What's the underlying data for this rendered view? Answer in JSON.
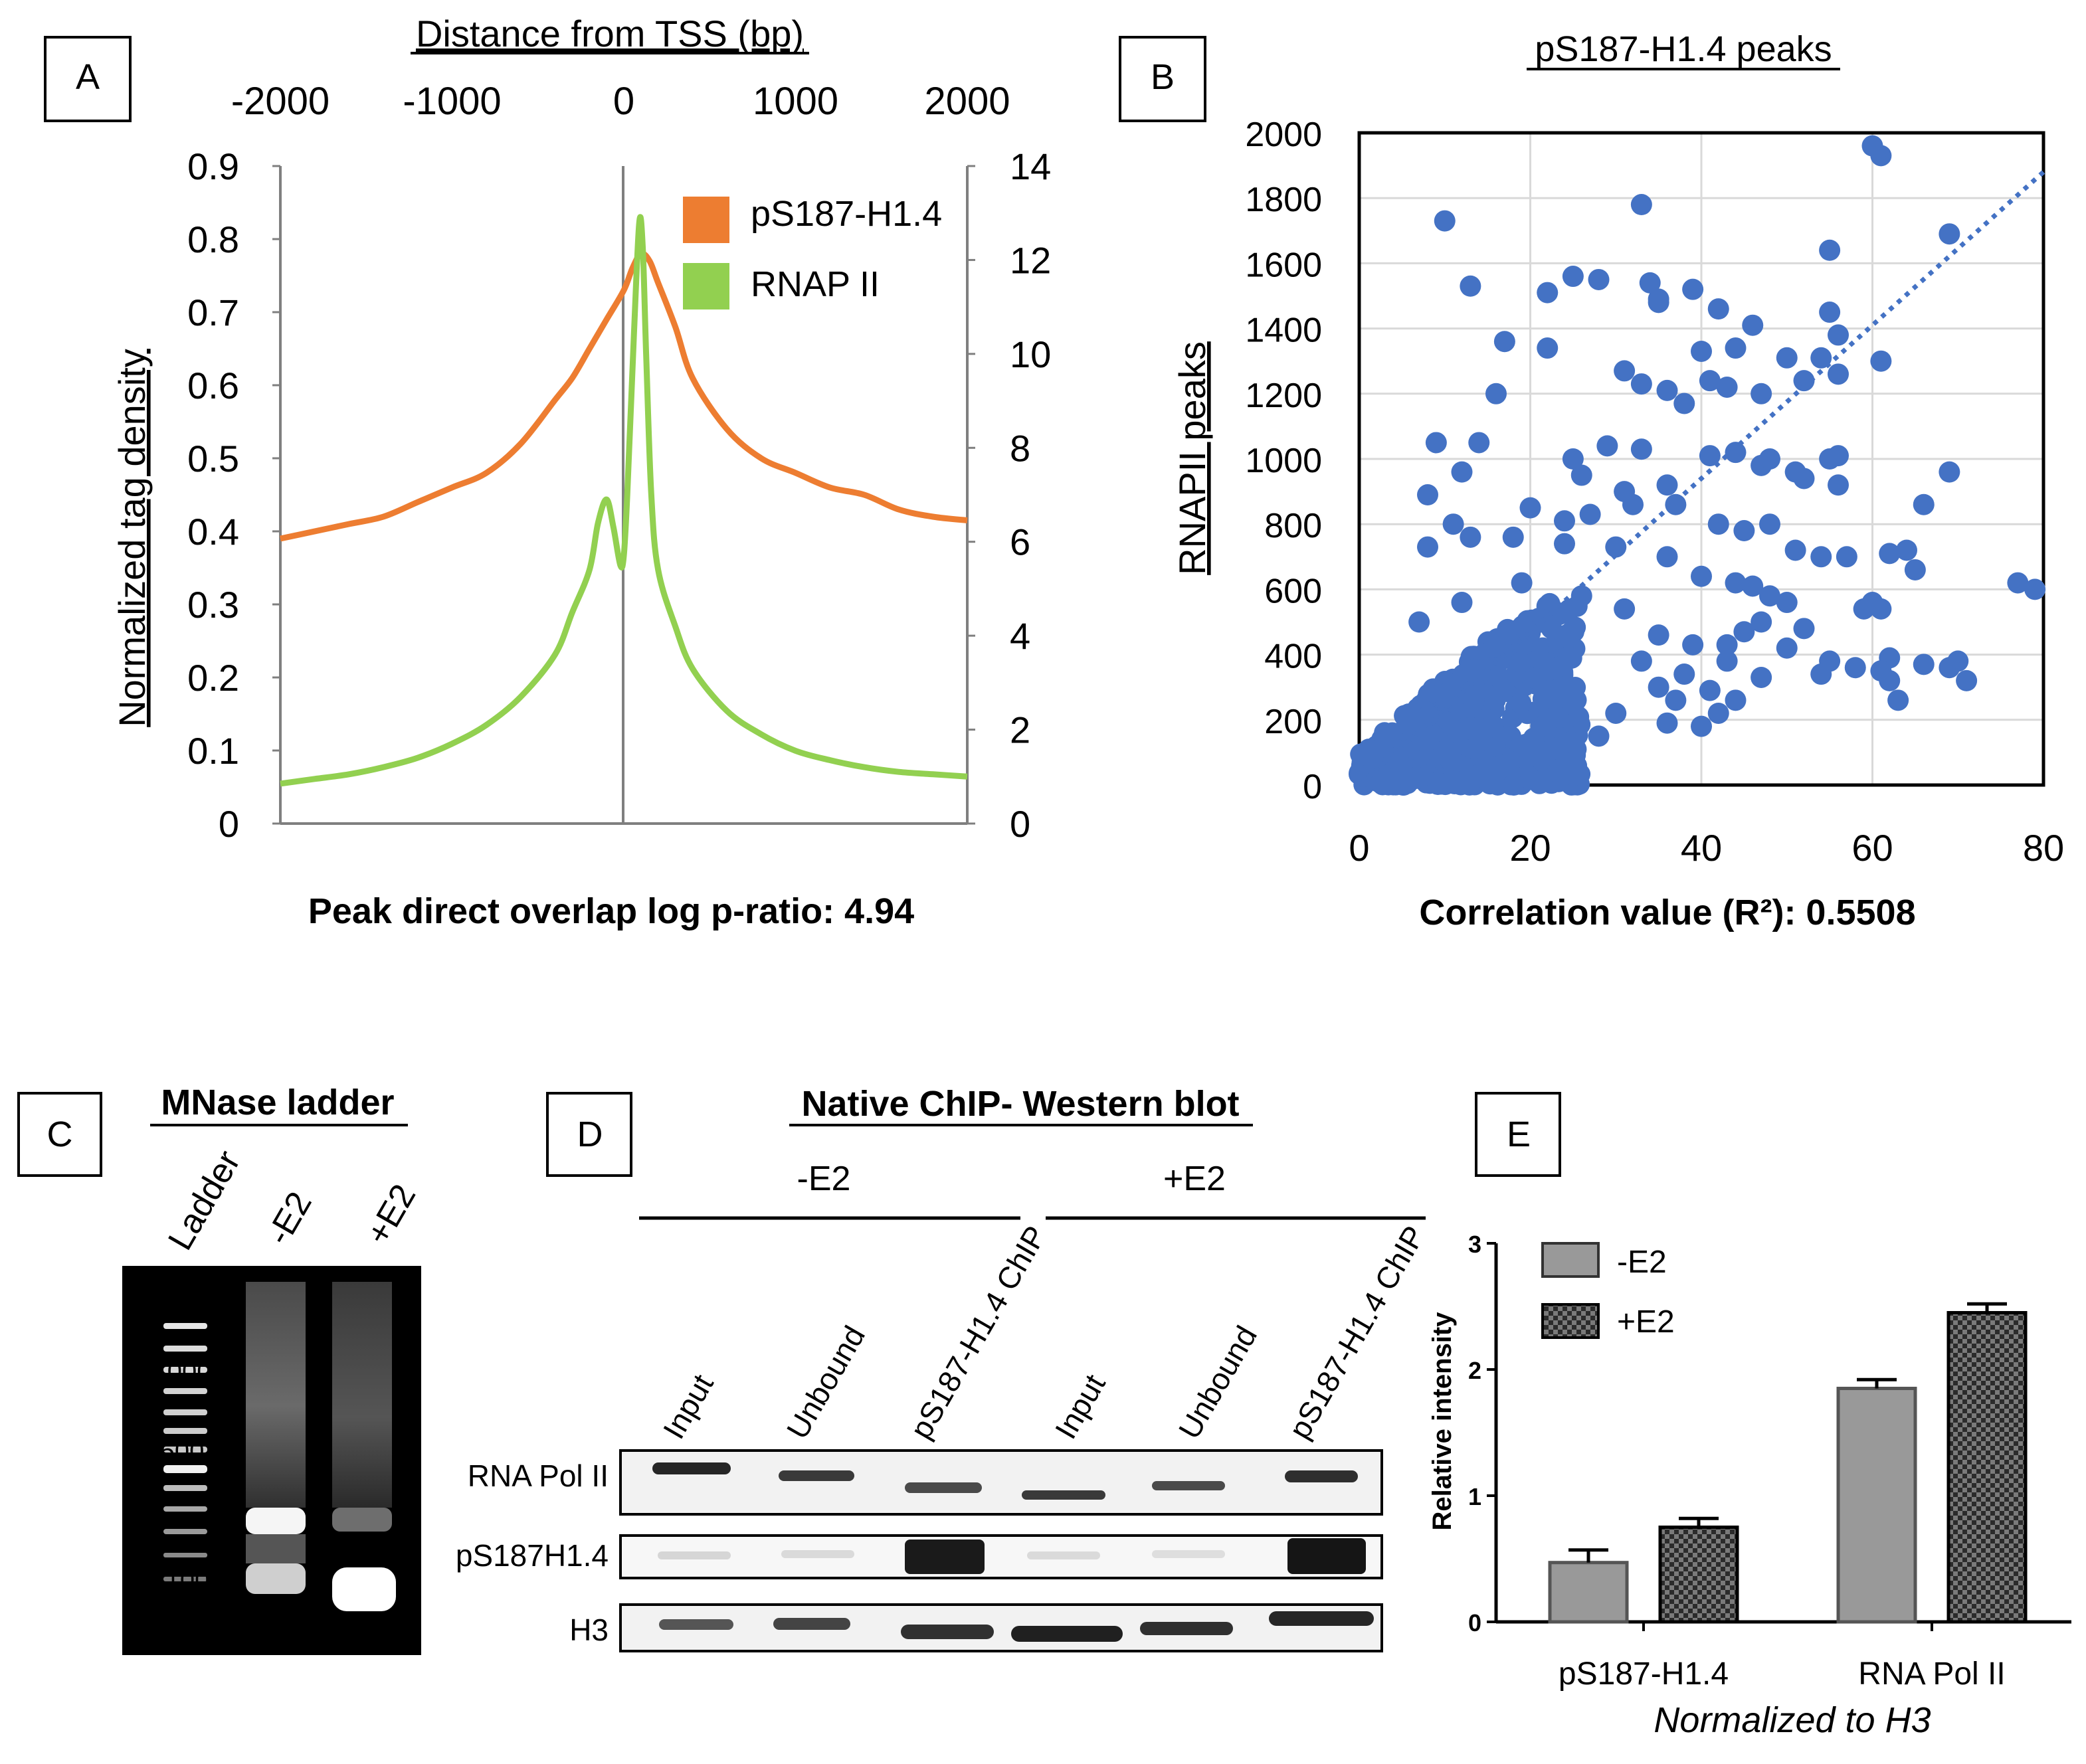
{
  "panels": {
    "a": "A",
    "b": "B",
    "c": "C",
    "d": "D",
    "e": "E"
  },
  "chart_data": [
    {
      "id": "A",
      "type": "line",
      "title": "Distance from TSS (bp)",
      "top_axis_ticks": [
        "-2000",
        "-1000",
        "0",
        "1000",
        "2000"
      ],
      "xlim": [
        -2000,
        2000
      ],
      "ylabel": "Normalized tag density",
      "left_ticks": [
        "0.9",
        "0.8",
        "0.7",
        "0.6",
        "0.5",
        "0.4",
        "0.3",
        "0.2",
        "0.1",
        "0"
      ],
      "ylim_left": [
        0,
        0.9
      ],
      "right_ticks": [
        "14",
        "12",
        "10",
        "8",
        "6",
        "4",
        "2",
        "0"
      ],
      "ylim_right": [
        0,
        14
      ],
      "footer": "Peak direct overlap log p-ratio: 4.94",
      "series": [
        {
          "name": "pS187-H1.4",
          "axis": "left",
          "color": "#ED7D31",
          "x": [
            -2000,
            -1800,
            -1600,
            -1400,
            -1200,
            -1000,
            -800,
            -600,
            -400,
            -300,
            -200,
            -100,
            0,
            50,
            100,
            150,
            200,
            300,
            400,
            600,
            800,
            1000,
            1200,
            1400,
            1600,
            1800,
            2000
          ],
          "values": [
            0.39,
            0.4,
            0.41,
            0.42,
            0.44,
            0.46,
            0.48,
            0.52,
            0.58,
            0.61,
            0.65,
            0.69,
            0.73,
            0.76,
            0.78,
            0.77,
            0.74,
            0.68,
            0.61,
            0.54,
            0.5,
            0.48,
            0.46,
            0.45,
            0.43,
            0.42,
            0.415
          ]
        },
        {
          "name": "RNAP II",
          "axis": "right",
          "color": "#92D050",
          "x": [
            -2000,
            -1800,
            -1600,
            -1400,
            -1200,
            -1000,
            -800,
            -600,
            -400,
            -300,
            -200,
            -150,
            -100,
            -60,
            -20,
            0,
            20,
            60,
            90,
            110,
            130,
            160,
            200,
            300,
            400,
            600,
            800,
            1000,
            1200,
            1400,
            1600,
            1800,
            2000
          ],
          "values": [
            0.85,
            0.95,
            1.05,
            1.2,
            1.4,
            1.7,
            2.1,
            2.7,
            3.6,
            4.5,
            5.4,
            6.4,
            6.9,
            6.3,
            5.5,
            5.7,
            7.0,
            10.5,
            12.8,
            12.3,
            10.0,
            7.0,
            5.4,
            4.2,
            3.3,
            2.4,
            1.9,
            1.55,
            1.35,
            1.2,
            1.1,
            1.05,
            1.0
          ]
        }
      ]
    },
    {
      "id": "B",
      "type": "scatter",
      "title": "pS187-H1.4 peaks",
      "xlabel": "Correlation value (R²): 0.5508",
      "ylabel": "RNAPII peaks",
      "xlim": [
        0,
        80
      ],
      "ylim": [
        0,
        2000
      ],
      "x_ticks": [
        "0",
        "20",
        "40",
        "60",
        "80"
      ],
      "y_ticks": [
        "2000",
        "1800",
        "1600",
        "1400",
        "1200",
        "1000",
        "800",
        "600",
        "400",
        "200",
        "0"
      ],
      "trendline": {
        "style": "dotted",
        "from": [
          0,
          0
        ],
        "to": [
          80,
          1880
        ]
      },
      "point_color": "#4472C4",
      "points": [
        [
          60,
          1960
        ],
        [
          61,
          1930
        ],
        [
          33,
          1780
        ],
        [
          10,
          1730
        ],
        [
          69,
          1690
        ],
        [
          55,
          1640
        ],
        [
          13,
          1530
        ],
        [
          28,
          1550
        ],
        [
          34,
          1540
        ],
        [
          22,
          1510
        ],
        [
          25,
          1560
        ],
        [
          35,
          1490
        ],
        [
          39,
          1520
        ],
        [
          42,
          1460
        ],
        [
          55,
          1450
        ],
        [
          56,
          1380
        ],
        [
          17,
          1360
        ],
        [
          22,
          1340
        ],
        [
          35,
          1480
        ],
        [
          46,
          1410
        ],
        [
          50,
          1310
        ],
        [
          54,
          1310
        ],
        [
          61,
          1300
        ],
        [
          31,
          1270
        ],
        [
          33,
          1230
        ],
        [
          36,
          1210
        ],
        [
          40,
          1330
        ],
        [
          41,
          1240
        ],
        [
          43,
          1220
        ],
        [
          44,
          1340
        ],
        [
          47,
          1200
        ],
        [
          52,
          1240
        ],
        [
          56,
          1260
        ],
        [
          38,
          1170
        ],
        [
          16,
          1200
        ],
        [
          9,
          1050
        ],
        [
          14,
          1050
        ],
        [
          25,
          1000
        ],
        [
          29,
          1040
        ],
        [
          33,
          1030
        ],
        [
          41,
          1010
        ],
        [
          47,
          980
        ],
        [
          51,
          960
        ],
        [
          55,
          1000
        ],
        [
          56,
          920
        ],
        [
          69,
          960
        ],
        [
          12,
          960
        ],
        [
          26,
          950
        ],
        [
          31,
          900
        ],
        [
          36,
          920
        ],
        [
          44,
          1020
        ],
        [
          48,
          1000
        ],
        [
          52,
          940
        ],
        [
          56,
          1010
        ],
        [
          8,
          890
        ],
        [
          11,
          800
        ],
        [
          20,
          850
        ],
        [
          24,
          810
        ],
        [
          27,
          830
        ],
        [
          32,
          860
        ],
        [
          37,
          860
        ],
        [
          42,
          800
        ],
        [
          45,
          780
        ],
        [
          48,
          800
        ],
        [
          51,
          720
        ],
        [
          57,
          700
        ],
        [
          62,
          710
        ],
        [
          66,
          860
        ],
        [
          8,
          730
        ],
        [
          13,
          760
        ],
        [
          18,
          760
        ],
        [
          24,
          740
        ],
        [
          30,
          730
        ],
        [
          36,
          700
        ],
        [
          40,
          640
        ],
        [
          44,
          620
        ],
        [
          46,
          610
        ],
        [
          48,
          580
        ],
        [
          50,
          560
        ],
        [
          54,
          700
        ],
        [
          59,
          540
        ],
        [
          61,
          540
        ],
        [
          64,
          720
        ],
        [
          7,
          500
        ],
        [
          12,
          560
        ],
        [
          19,
          620
        ],
        [
          26,
          580
        ],
        [
          31,
          540
        ],
        [
          35,
          460
        ],
        [
          39,
          430
        ],
        [
          43,
          430
        ],
        [
          45,
          470
        ],
        [
          47,
          500
        ],
        [
          52,
          480
        ],
        [
          55,
          380
        ],
        [
          58,
          360
        ],
        [
          60,
          560
        ],
        [
          62,
          390
        ],
        [
          65,
          660
        ],
        [
          33,
          380
        ],
        [
          37,
          260
        ],
        [
          43,
          380
        ],
        [
          47,
          330
        ],
        [
          50,
          420
        ],
        [
          54,
          340
        ],
        [
          61,
          350
        ],
        [
          62,
          320
        ],
        [
          63,
          260
        ],
        [
          66,
          370
        ],
        [
          69,
          360
        ],
        [
          70,
          380
        ],
        [
          71,
          320
        ],
        [
          77,
          620
        ],
        [
          79,
          600
        ],
        [
          40,
          180
        ],
        [
          42,
          220
        ],
        [
          36,
          190
        ],
        [
          30,
          220
        ],
        [
          28,
          150
        ],
        [
          35,
          300
        ],
        [
          38,
          340
        ],
        [
          41,
          290
        ],
        [
          44,
          260
        ]
      ],
      "dense_cluster": {
        "x": [
          0,
          26
        ],
        "y": [
          0,
          560
        ]
      }
    },
    {
      "id": "C",
      "type": "gel",
      "title": "MNase ladder",
      "lanes": [
        "Ladder",
        "-E2",
        "+E2"
      ],
      "size_markers": [
        "1000",
        "500",
        "100"
      ]
    },
    {
      "id": "D",
      "type": "western-blot",
      "title": "Native ChIP- Western blot",
      "groups": [
        "-E2",
        "+E2"
      ],
      "lanes": [
        "Input",
        "Unbound",
        "pS187-H1.4 ChIP",
        "Input",
        "Unbound",
        "pS187-H1.4 ChIP"
      ],
      "rows": [
        "RNA Pol II",
        "pS187H1.4",
        "H3"
      ]
    },
    {
      "id": "E",
      "type": "bar",
      "categories": [
        "pS187-H1.4",
        "RNA Pol II"
      ],
      "xlabel": "Normalized to H3",
      "ylabel": "Relative intensity",
      "ylim": [
        0,
        3
      ],
      "y_ticks": [
        "3",
        "2",
        "1",
        "0"
      ],
      "series": [
        {
          "name": "-E2",
          "pattern": "solid-gray",
          "values": [
            0.47,
            1.85
          ],
          "errors": [
            0.1,
            0.07
          ]
        },
        {
          "name": "+E2",
          "pattern": "checker",
          "values": [
            0.75,
            2.45
          ],
          "errors": [
            0.07,
            0.07
          ]
        }
      ]
    }
  ]
}
